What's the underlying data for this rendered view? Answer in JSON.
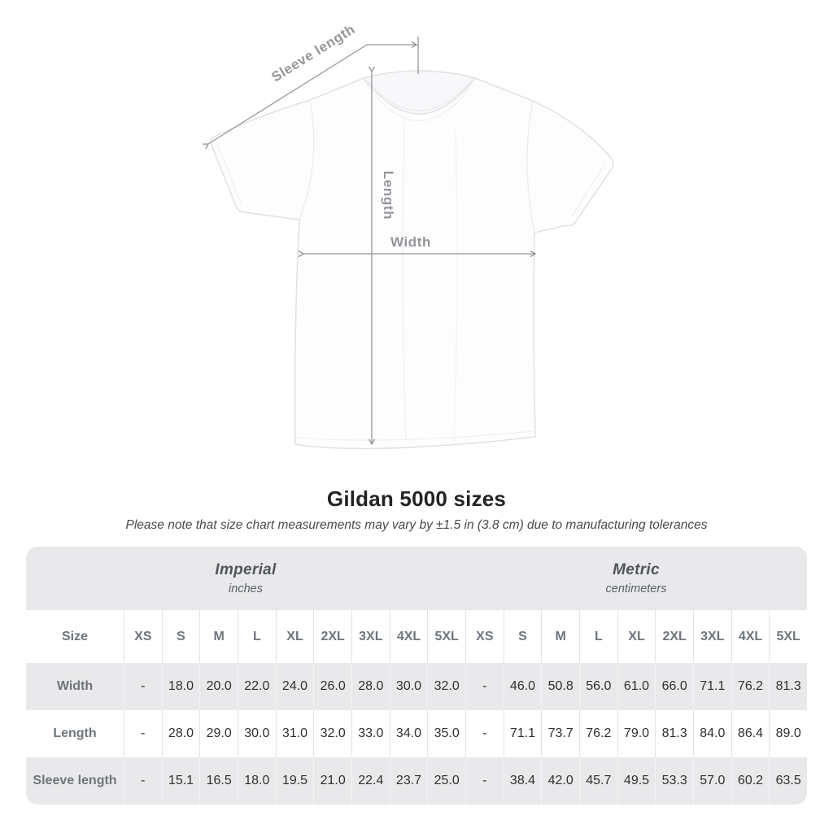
{
  "diagram": {
    "sleeve_length_label": "Sleeve length",
    "length_label": "Length",
    "width_label": "Width"
  },
  "heading": {
    "title": "Gildan 5000 sizes",
    "subtitle": "Please note that size chart measurements may vary by ±1.5 in (3.8 cm) due to manufacturing tolerances"
  },
  "colors": {
    "dimension_line": "#98989d",
    "dimension_label": "#96969b",
    "shirt_outline": "#e1e1e4",
    "table_band_bg": "#e9e9eb",
    "table_alt_row_bg": "#e9e9eb",
    "table_header_text": "#6f757c",
    "table_value_text": "#303030"
  },
  "chart_data": {
    "type": "table",
    "title": "Gildan 5000 sizes",
    "corner_label": "Size",
    "unit_groups": [
      {
        "label": "Imperial",
        "unit": "inches"
      },
      {
        "label": "Metric",
        "unit": "centimeters"
      }
    ],
    "sizes": [
      "XS",
      "S",
      "M",
      "L",
      "XL",
      "2XL",
      "3XL",
      "4XL",
      "5XL"
    ],
    "rows": [
      {
        "label": "Width",
        "imperial": [
          "-",
          "18.0",
          "20.0",
          "22.0",
          "24.0",
          "26.0",
          "28.0",
          "30.0",
          "32.0"
        ],
        "metric": [
          "-",
          "46.0",
          "50.8",
          "56.0",
          "61.0",
          "66.0",
          "71.1",
          "76.2",
          "81.3"
        ]
      },
      {
        "label": "Length",
        "imperial": [
          "-",
          "28.0",
          "29.0",
          "30.0",
          "31.0",
          "32.0",
          "33.0",
          "34.0",
          "35.0"
        ],
        "metric": [
          "-",
          "71.1",
          "73.7",
          "76.2",
          "79.0",
          "81.3",
          "84.0",
          "86.4",
          "89.0"
        ]
      },
      {
        "label": "Sleeve length",
        "imperial": [
          "-",
          "15.1",
          "16.5",
          "18.0",
          "19.5",
          "21.0",
          "22.4",
          "23.7",
          "25.0"
        ],
        "metric": [
          "-",
          "38.4",
          "42.0",
          "45.7",
          "49.5",
          "53.3",
          "57.0",
          "60.2",
          "63.5"
        ]
      }
    ]
  }
}
